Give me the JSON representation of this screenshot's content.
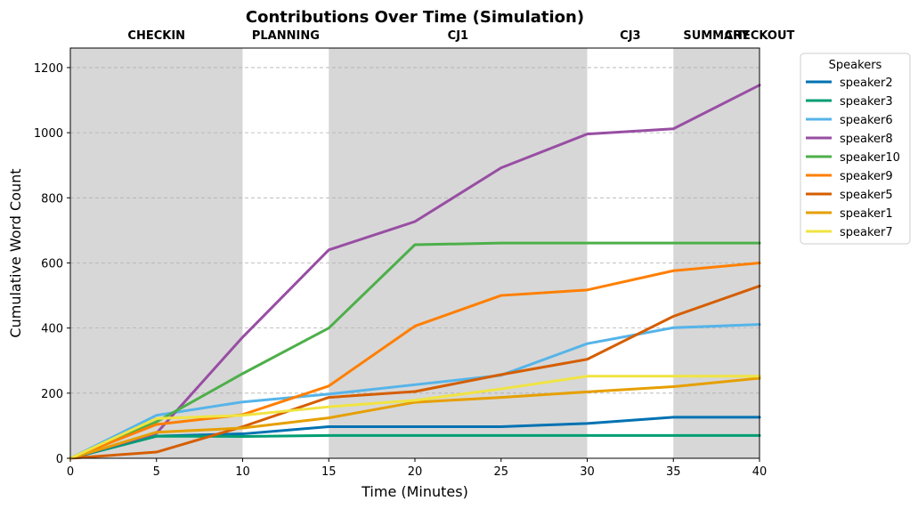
{
  "chart_data": {
    "type": "line",
    "title": "Contributions Over Time (Simulation)",
    "xlabel": "Time (Minutes)",
    "ylabel": "Cumulative Word Count",
    "xlim": [
      0,
      40
    ],
    "ylim": [
      0,
      1260
    ],
    "x_ticks": [
      0,
      5,
      10,
      15,
      20,
      25,
      30,
      35,
      40
    ],
    "y_ticks": [
      0,
      200,
      400,
      600,
      800,
      1000,
      1200
    ],
    "grid": "y-dashed",
    "x": [
      0,
      5,
      10,
      15,
      20,
      25,
      30,
      35,
      40
    ],
    "phases": [
      {
        "label": "CHECKIN",
        "start": 0,
        "end": 10,
        "shaded": true
      },
      {
        "label": "PLANNING",
        "start": 10,
        "end": 15,
        "shaded": false
      },
      {
        "label": "CJ1",
        "start": 15,
        "end": 30,
        "shaded": true
      },
      {
        "label": "CJ3",
        "start": 30,
        "end": 35,
        "shaded": false
      },
      {
        "label": "SUMMARY",
        "start": 35,
        "end": 40,
        "shaded": true
      },
      {
        "label": "CHECKOUT",
        "start": 40,
        "end": 40,
        "shaded": false
      }
    ],
    "legend": {
      "title": "Speakers",
      "placement": "outside-right"
    },
    "series": [
      {
        "name": "speaker2",
        "color": "#0072B2",
        "values": [
          0,
          68,
          75,
          97,
          97,
          97,
          107,
          126,
          126
        ]
      },
      {
        "name": "speaker3",
        "color": "#009E73",
        "values": [
          0,
          68,
          67,
          70,
          70,
          70,
          70,
          70,
          70
        ]
      },
      {
        "name": "speaker6",
        "color": "#56B4E9",
        "values": [
          0,
          132,
          173,
          197,
          226,
          255,
          352,
          401,
          411
        ]
      },
      {
        "name": "speaker8",
        "color": "#984EA3",
        "values": [
          0,
          77,
          372,
          640,
          727,
          892,
          996,
          1012,
          1146
        ]
      },
      {
        "name": "speaker10",
        "color": "#4DAF4A",
        "values": [
          0,
          112,
          260,
          400,
          656,
          661,
          661,
          661,
          661
        ]
      },
      {
        "name": "speaker9",
        "color": "#FF7F00",
        "values": [
          0,
          104,
          134,
          222,
          406,
          500,
          517,
          576,
          600
        ]
      },
      {
        "name": "speaker5",
        "color": "#D55E00",
        "values": [
          0,
          19,
          97,
          187,
          205,
          257,
          304,
          436,
          529
        ]
      },
      {
        "name": "speaker1",
        "color": "#E69F00",
        "values": [
          0,
          80,
          93,
          124,
          172,
          187,
          204,
          220,
          246
        ]
      },
      {
        "name": "speaker7",
        "color": "#F0E442",
        "values": [
          0,
          122,
          132,
          158,
          178,
          213,
          252,
          252,
          252
        ]
      }
    ]
  }
}
